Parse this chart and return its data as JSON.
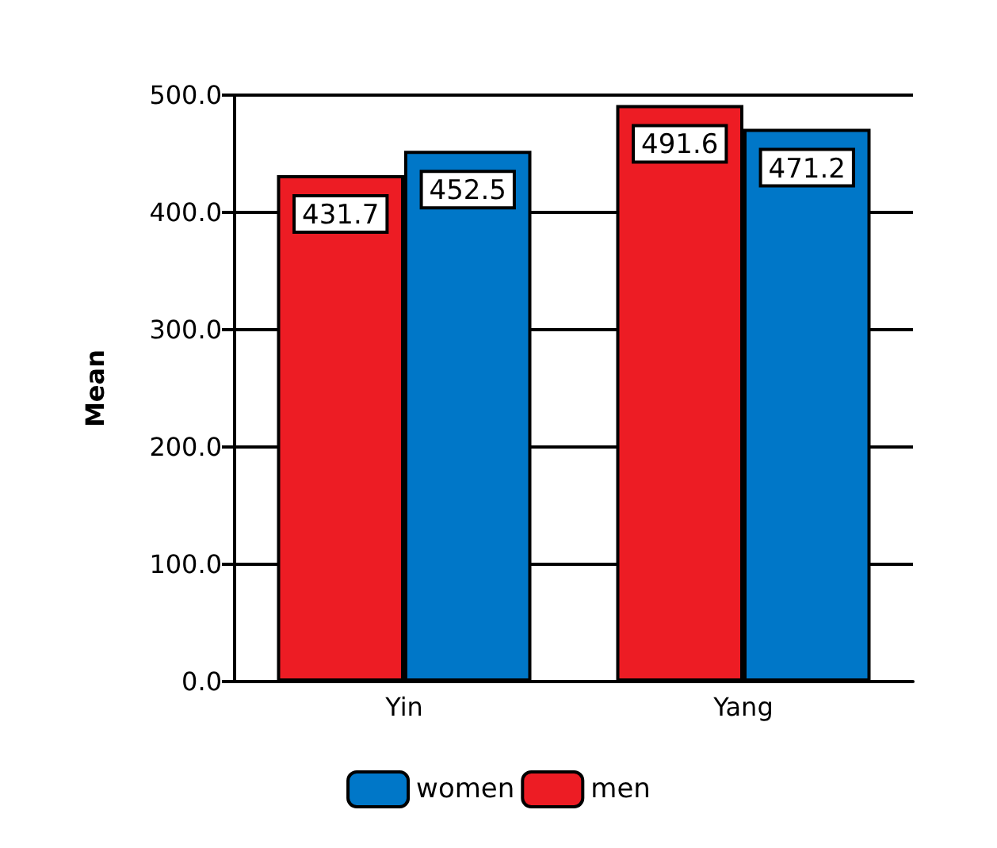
{
  "chart_data": {
    "type": "bar",
    "ylabel": "Mean",
    "categories": [
      "Yin",
      "Yang"
    ],
    "series": [
      {
        "name": "men",
        "color": "#ed1c24",
        "values": [
          431.7,
          491.6
        ]
      },
      {
        "name": "women",
        "color": "#0077c8",
        "values": [
          452.5,
          471.2
        ]
      }
    ],
    "ylim": [
      0,
      500
    ],
    "yticks": [
      {
        "value": 0,
        "label": "0.0"
      },
      {
        "value": 100,
        "label": "100.0"
      },
      {
        "value": 200,
        "label": "200.0"
      },
      {
        "value": 300,
        "label": "300.0"
      },
      {
        "value": 400,
        "label": "400.0"
      },
      {
        "value": 500,
        "label": "500.0"
      }
    ],
    "grid": "y",
    "legend": "bottom",
    "data_labels": true
  }
}
